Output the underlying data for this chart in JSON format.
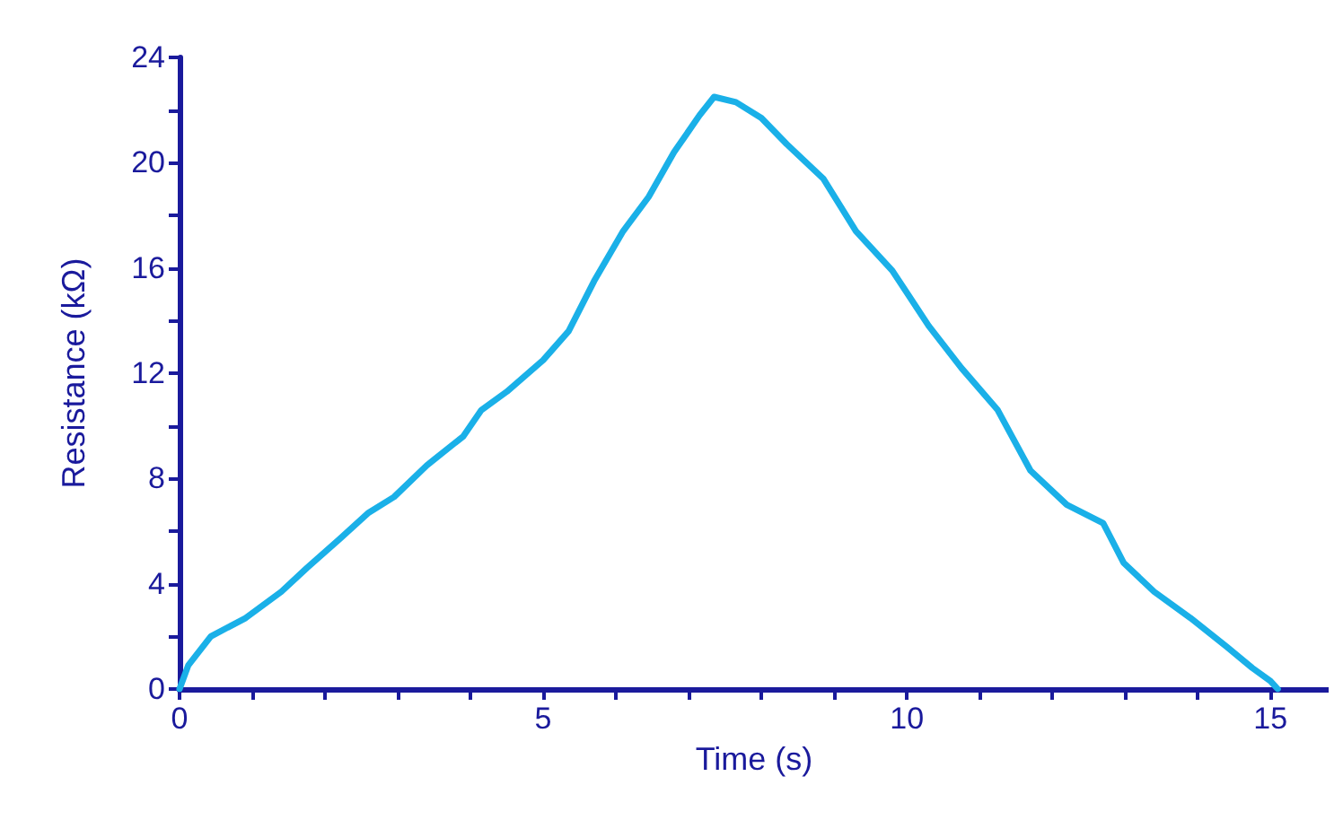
{
  "chart_data": {
    "type": "line",
    "xlabel": "Time (s)",
    "ylabel": "Resistance (kΩ)",
    "xlim": [
      0,
      15.8
    ],
    "ylim": [
      0,
      24
    ],
    "xticks": [
      0,
      {
        "value": 1,
        "label": null
      },
      {
        "value": 2,
        "label": null
      },
      {
        "value": 3,
        "label": null
      },
      {
        "value": 4,
        "label": null
      },
      5,
      {
        "value": 6,
        "label": null
      },
      {
        "value": 7,
        "label": null
      },
      {
        "value": 8,
        "label": null
      },
      {
        "value": 9,
        "label": null
      },
      10,
      {
        "value": 11,
        "label": null
      },
      {
        "value": 12,
        "label": null
      },
      {
        "value": 13,
        "label": null
      },
      {
        "value": 14,
        "label": null
      },
      15
    ],
    "yticks": [
      0,
      {
        "value": 2,
        "label": null
      },
      4,
      {
        "value": 6,
        "label": null
      },
      8,
      {
        "value": 10,
        "label": null
      },
      12,
      {
        "value": 14,
        "label": null
      },
      16,
      {
        "value": 18,
        "label": null
      },
      20,
      {
        "value": 22,
        "label": null
      },
      24
    ],
    "grid": false,
    "marker": "none",
    "line_style": "solid",
    "series": [
      {
        "color": "#1ab0e8",
        "x": [
          0,
          0.12,
          0.43,
          0.91,
          1.4,
          1.75,
          2.2,
          2.6,
          2.95,
          3.4,
          3.9,
          4.15,
          4.5,
          5.0,
          5.35,
          5.7,
          6.1,
          6.45,
          6.8,
          7.15,
          7.35,
          7.65,
          8.0,
          8.35,
          8.85,
          9.3,
          9.8,
          10.3,
          10.75,
          11.25,
          11.7,
          12.2,
          12.7,
          12.98,
          13.4,
          13.9,
          14.4,
          14.75,
          15.0,
          15.1
        ],
        "values": [
          0,
          0.9,
          2.0,
          2.7,
          3.7,
          4.6,
          5.7,
          6.7,
          7.3,
          8.5,
          9.6,
          10.6,
          11.3,
          12.5,
          13.6,
          15.5,
          17.4,
          18.7,
          20.4,
          21.8,
          22.5,
          22.3,
          21.7,
          20.7,
          19.4,
          17.4,
          15.9,
          13.8,
          12.2,
          10.6,
          8.3,
          7.0,
          6.3,
          4.8,
          3.7,
          2.7,
          1.6,
          0.8,
          0.3,
          0
        ]
      }
    ]
  }
}
